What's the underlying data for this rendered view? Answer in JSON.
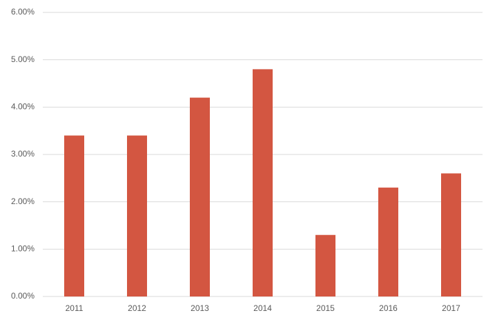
{
  "chart_data": {
    "type": "bar",
    "categories": [
      "2011",
      "2012",
      "2013",
      "2014",
      "2015",
      "2016",
      "2017"
    ],
    "values": [
      3.4,
      3.4,
      4.2,
      4.8,
      1.3,
      2.3,
      2.6
    ],
    "color": "#d35641",
    "ylim": [
      0,
      6
    ],
    "yticks": [
      {
        "value": 0,
        "label": "0.00%"
      },
      {
        "value": 1,
        "label": "1.00%"
      },
      {
        "value": 2,
        "label": "2.00%"
      },
      {
        "value": 3,
        "label": "3.00%"
      },
      {
        "value": 4,
        "label": "4.00%"
      },
      {
        "value": 5,
        "label": "5.00%"
      },
      {
        "value": 6,
        "label": "6.00%"
      }
    ],
    "grid": true
  }
}
